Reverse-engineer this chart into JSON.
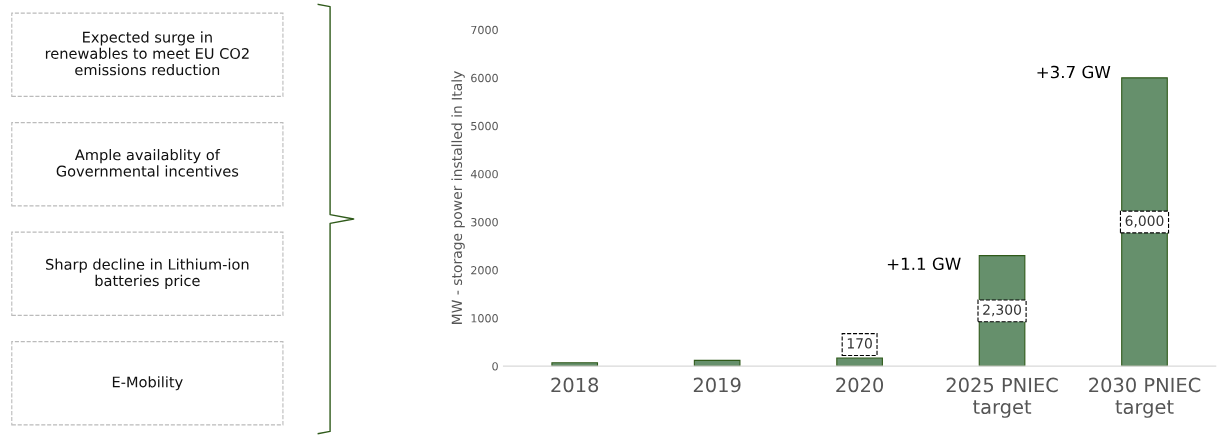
{
  "chart_data": [
    {
      "type": "other",
      "annotations": [
        "Expected surge in\nrenewables to meet EU CO2\nemissions reduction",
        "Ample availablity of\nGovernmental incentives",
        "Sharp decline in Lithium-ion\nbatteries price",
        "E-Mobility"
      ]
    },
    {
      "type": "bar",
      "ylabel": "MW - storage power installed in Italy",
      "categories": [
        "2018",
        "2019",
        "2020",
        "2025 PNIEC\ntarget",
        "2030 PNIEC\ntarget"
      ],
      "values": [
        70,
        120,
        170,
        2300,
        6000
      ],
      "value_labels": [
        null,
        null,
        "170",
        "2,300",
        "6,000"
      ],
      "color": "#66906c",
      "ylim": [
        0,
        7000
      ],
      "yticks": [
        0,
        1000,
        2000,
        3000,
        4000,
        5000,
        6000,
        7000
      ],
      "grid": false,
      "legend": false,
      "annotations": [
        "+1.1 GW",
        "+3.7 GW"
      ]
    }
  ]
}
